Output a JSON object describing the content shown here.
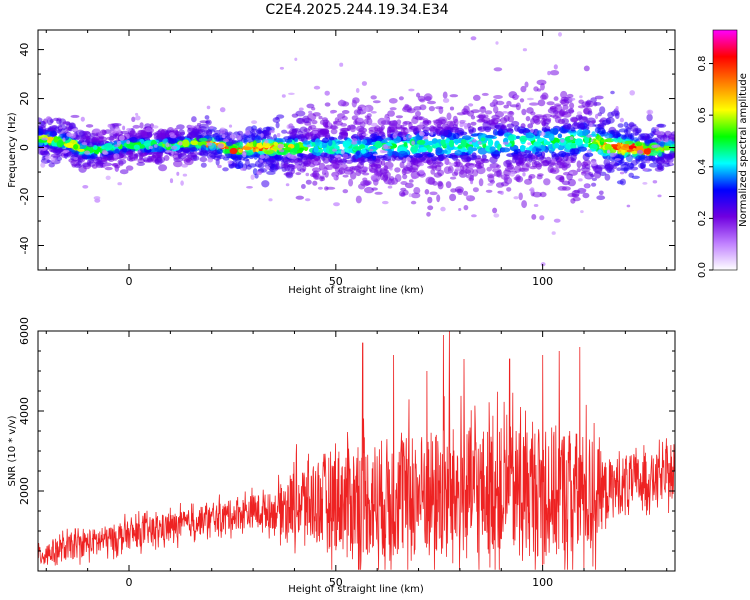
{
  "title": "C2E4.2025.244.19.34.E34",
  "chart_data": [
    {
      "type": "heatmap",
      "name": "spectrogram",
      "xlabel": "Height of straight line (km)",
      "ylabel": "Frequency (Hz)",
      "xlim": [
        -22,
        132
      ],
      "ylim": [
        -50,
        48
      ],
      "xticks": [
        0,
        50,
        100
      ],
      "yticks": [
        -40,
        -20,
        0,
        20,
        40
      ],
      "colorbar": {
        "label": "Normalized spectral amplitude",
        "range": [
          0,
          0.93
        ],
        "ticks": [
          0.0,
          0.2,
          0.4,
          0.6,
          0.8
        ],
        "colormap": [
          "#ffffff",
          "#c080ff",
          "#7000e0",
          "#0000ff",
          "#00ffff",
          "#00ff00",
          "#ffff00",
          "#ff8000",
          "#ff0000",
          "#ff00ff"
        ]
      },
      "band_center_hz": [
        [
          -22,
          4
        ],
        [
          -15,
          2
        ],
        [
          -10,
          -2
        ],
        [
          0,
          1
        ],
        [
          10,
          1
        ],
        [
          20,
          2
        ],
        [
          25,
          -1
        ],
        [
          30,
          0
        ],
        [
          40,
          0
        ],
        [
          50,
          0
        ],
        [
          60,
          0
        ],
        [
          70,
          1
        ],
        [
          80,
          1
        ],
        [
          90,
          2
        ],
        [
          100,
          2
        ],
        [
          110,
          3
        ],
        [
          115,
          1
        ],
        [
          120,
          0
        ],
        [
          125,
          -1
        ],
        [
          132,
          0
        ]
      ],
      "band_halfwidth_hz": [
        [
          -22,
          6
        ],
        [
          0,
          6
        ],
        [
          25,
          5
        ],
        [
          35,
          8
        ],
        [
          50,
          11
        ],
        [
          70,
          13
        ],
        [
          85,
          15
        ],
        [
          100,
          15
        ],
        [
          110,
          16
        ],
        [
          120,
          8
        ],
        [
          132,
          5
        ]
      ],
      "peak_amplitude": [
        [
          -22,
          0.7
        ],
        [
          -15,
          0.65
        ],
        [
          0,
          0.5
        ],
        [
          15,
          0.6
        ],
        [
          20,
          0.8
        ],
        [
          28,
          0.9
        ],
        [
          32,
          0.85
        ],
        [
          45,
          0.45
        ],
        [
          60,
          0.45
        ],
        [
          80,
          0.45
        ],
        [
          100,
          0.45
        ],
        [
          110,
          0.5
        ],
        [
          120,
          0.9
        ],
        [
          125,
          0.85
        ],
        [
          132,
          0.6
        ]
      ]
    },
    {
      "type": "line",
      "name": "snr",
      "xlabel": "Height of straight line (km)",
      "ylabel": "SNR (10 * v/v)",
      "xlim": [
        -22,
        132
      ],
      "ylim": [
        0,
        6000
      ],
      "xticks": [
        0,
        50,
        100
      ],
      "yticks": [
        2000,
        4000,
        6000
      ],
      "series": [
        {
          "name": "SNR",
          "color": "#ee2222",
          "baseline": [
            [
              -22,
              400
            ],
            [
              -10,
              700
            ],
            [
              0,
              900
            ],
            [
              10,
              1100
            ],
            [
              20,
              1300
            ],
            [
              30,
              1500
            ],
            [
              35,
              1500
            ],
            [
              40,
              1700
            ],
            [
              50,
              1800
            ],
            [
              60,
              1800
            ],
            [
              70,
              1900
            ],
            [
              80,
              2000
            ],
            [
              90,
              2000
            ],
            [
              100,
              2000
            ],
            [
              110,
              1900
            ],
            [
              115,
              2000
            ],
            [
              120,
              2200
            ],
            [
              132,
              2400
            ]
          ],
          "spread": [
            [
              -22,
              300
            ],
            [
              0,
              350
            ],
            [
              20,
              350
            ],
            [
              35,
              450
            ],
            [
              40,
              900
            ],
            [
              50,
              1300
            ],
            [
              60,
              1500
            ],
            [
              75,
              1600
            ],
            [
              90,
              1600
            ],
            [
              105,
              1700
            ],
            [
              112,
              1500
            ],
            [
              115,
              800
            ],
            [
              125,
              600
            ],
            [
              132,
              600
            ]
          ],
          "spikes": [
            [
              56.5,
              5700
            ],
            [
              64,
              5400
            ],
            [
              72,
              5000
            ],
            [
              76,
              5900
            ],
            [
              77.5,
              6000
            ],
            [
              81,
              5300
            ],
            [
              92,
              5300
            ],
            [
              100,
              5400
            ],
            [
              104,
              5500
            ],
            [
              109,
              5600
            ]
          ]
        }
      ]
    }
  ]
}
